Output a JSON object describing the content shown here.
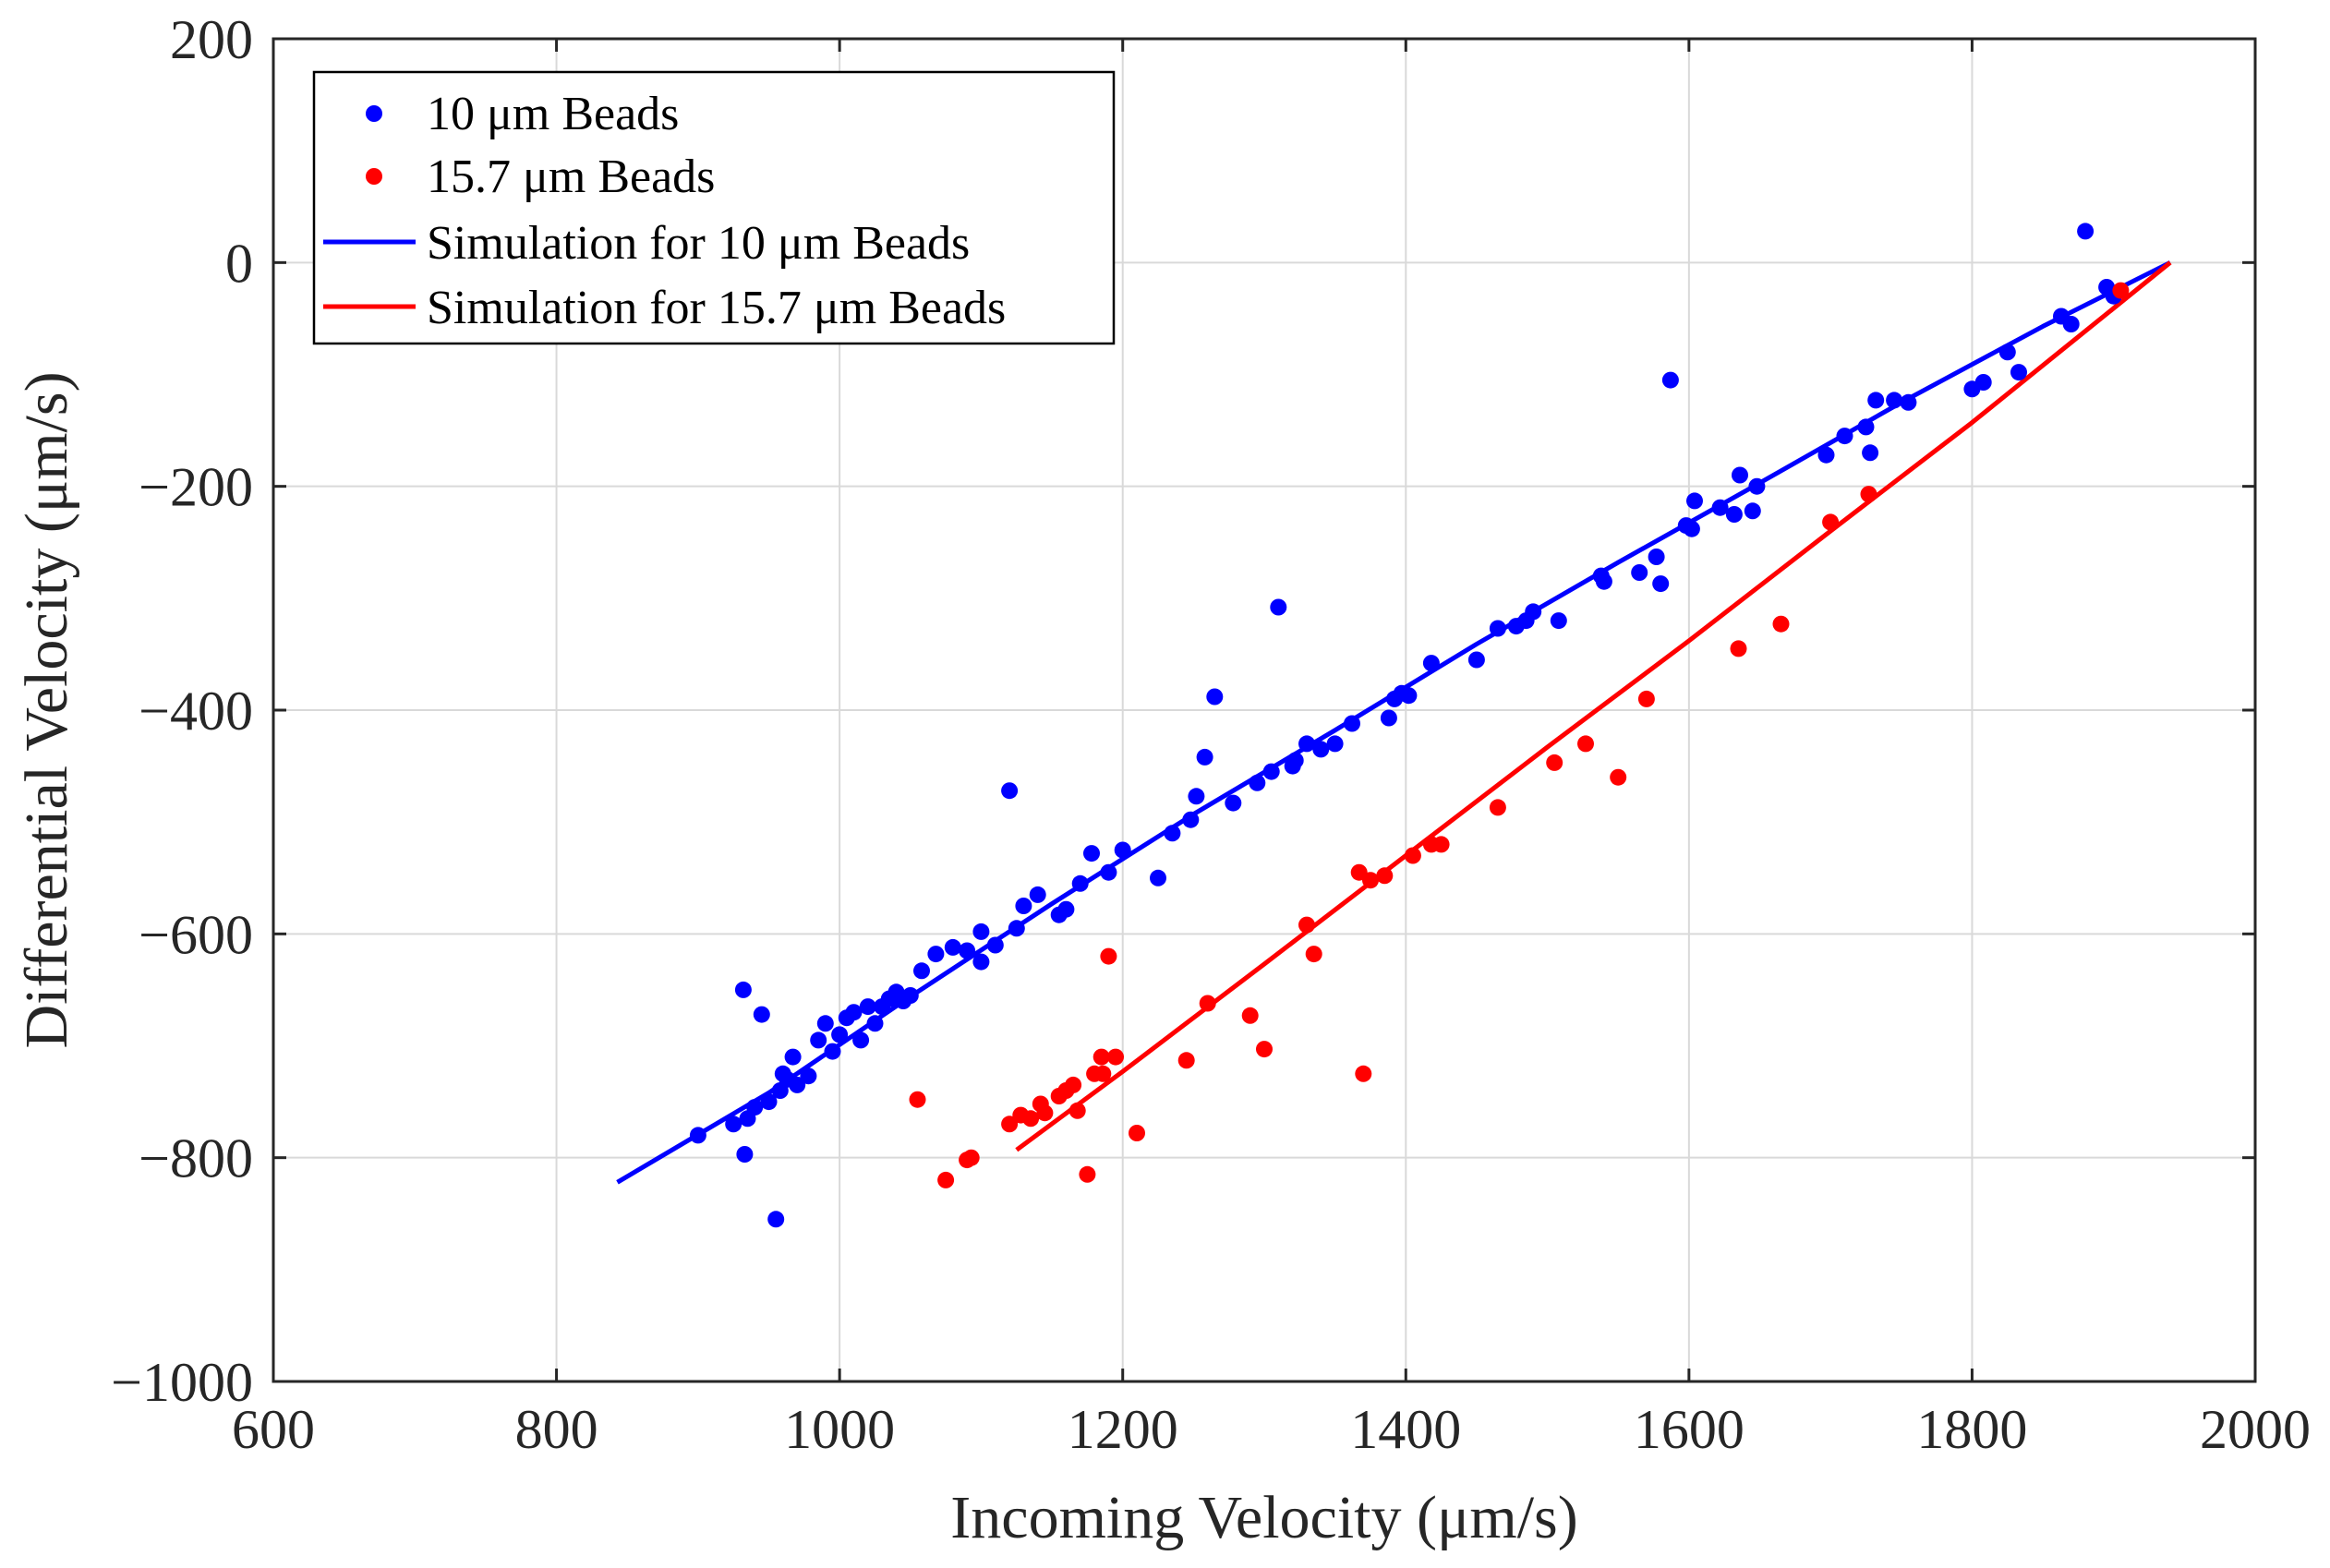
{
  "chart_data": {
    "type": "scatter",
    "title": "",
    "xlabel": "Incoming Velocity (μm/s)",
    "ylabel": "Differential Velocity (μm/s)",
    "xlim": [
      600,
      2000
    ],
    "ylim": [
      -1000,
      200
    ],
    "xticks": [
      600,
      800,
      1000,
      1200,
      1400,
      1600,
      1800,
      2000
    ],
    "yticks": [
      200,
      0,
      -200,
      -400,
      -600,
      -800,
      -1000
    ],
    "xtick_labels": [
      "600",
      "800",
      "1000",
      "1200",
      "1400",
      "1600",
      "1800",
      "2000"
    ],
    "ytick_labels": [
      "200",
      "0",
      "−200",
      "−400",
      "−600",
      "−800",
      "−1000"
    ],
    "grid": true,
    "legend_position": "top-left",
    "series": [
      {
        "name": "10 μm Beads",
        "kind": "scatter",
        "color": "#0000ff",
        "points": [
          [
            900,
            -780
          ],
          [
            925,
            -770
          ],
          [
            932,
            -650
          ],
          [
            933,
            -797
          ],
          [
            935,
            -765
          ],
          [
            940,
            -755
          ],
          [
            945,
            -672
          ],
          [
            950,
            -750
          ],
          [
            955,
            -855
          ],
          [
            958,
            -740
          ],
          [
            960,
            -725
          ],
          [
            963,
            -730
          ],
          [
            967,
            -710
          ],
          [
            970,
            -735
          ],
          [
            978,
            -727
          ],
          [
            985,
            -695
          ],
          [
            990,
            -680
          ],
          [
            995,
            -705
          ],
          [
            1000,
            -690
          ],
          [
            1005,
            -675
          ],
          [
            1010,
            -670
          ],
          [
            1015,
            -695
          ],
          [
            1020,
            -665
          ],
          [
            1025,
            -680
          ],
          [
            1030,
            -665
          ],
          [
            1035,
            -658
          ],
          [
            1040,
            -652
          ],
          [
            1045,
            -660
          ],
          [
            1050,
            -655
          ],
          [
            1058,
            -633
          ],
          [
            1068,
            -618
          ],
          [
            1080,
            -612
          ],
          [
            1090,
            -615
          ],
          [
            1100,
            -598
          ],
          [
            1100,
            -625
          ],
          [
            1110,
            -610
          ],
          [
            1120,
            -472
          ],
          [
            1125,
            -595
          ],
          [
            1130,
            -575
          ],
          [
            1140,
            -565
          ],
          [
            1155,
            -583
          ],
          [
            1160,
            -578
          ],
          [
            1170,
            -555
          ],
          [
            1178,
            -528
          ],
          [
            1190,
            -545
          ],
          [
            1200,
            -525
          ],
          [
            1225,
            -550
          ],
          [
            1235,
            -510
          ],
          [
            1248,
            -498
          ],
          [
            1252,
            -477
          ],
          [
            1258,
            -442
          ],
          [
            1265,
            -388
          ],
          [
            1278,
            -483
          ],
          [
            1295,
            -465
          ],
          [
            1305,
            -455
          ],
          [
            1310,
            -308
          ],
          [
            1320,
            -450
          ],
          [
            1322,
            -445
          ],
          [
            1330,
            -430
          ],
          [
            1340,
            -435
          ],
          [
            1350,
            -430
          ],
          [
            1362,
            -412
          ],
          [
            1388,
            -407
          ],
          [
            1392,
            -390
          ],
          [
            1397,
            -385
          ],
          [
            1402,
            -387
          ],
          [
            1418,
            -358
          ],
          [
            1450,
            -355
          ],
          [
            1465,
            -327
          ],
          [
            1478,
            -325
          ],
          [
            1485,
            -320
          ],
          [
            1490,
            -312
          ],
          [
            1508,
            -320
          ],
          [
            1538,
            -280
          ],
          [
            1540,
            -285
          ],
          [
            1565,
            -277
          ],
          [
            1577,
            -263
          ],
          [
            1580,
            -287
          ],
          [
            1587,
            -105
          ],
          [
            1598,
            -235
          ],
          [
            1602,
            -238
          ],
          [
            1604,
            -213
          ],
          [
            1622,
            -219
          ],
          [
            1632,
            -225
          ],
          [
            1636,
            -190
          ],
          [
            1645,
            -222
          ],
          [
            1648,
            -200
          ],
          [
            1697,
            -172
          ],
          [
            1710,
            -155
          ],
          [
            1725,
            -147
          ],
          [
            1728,
            -170
          ],
          [
            1732,
            -123
          ],
          [
            1745,
            -123
          ],
          [
            1755,
            -125
          ],
          [
            1800,
            -113
          ],
          [
            1808,
            -107
          ],
          [
            1825,
            -80
          ],
          [
            1833,
            -98
          ],
          [
            1863,
            -48
          ],
          [
            1870,
            -55
          ],
          [
            1880,
            28
          ],
          [
            1895,
            -22
          ],
          [
            1900,
            -30
          ]
        ]
      },
      {
        "name": "15.7 μm Beads",
        "kind": "scatter",
        "color": "#ff0000",
        "points": [
          [
            1055,
            -748
          ],
          [
            1075,
            -820
          ],
          [
            1090,
            -802
          ],
          [
            1093,
            -800
          ],
          [
            1120,
            -770
          ],
          [
            1128,
            -762
          ],
          [
            1135,
            -765
          ],
          [
            1142,
            -752
          ],
          [
            1145,
            -760
          ],
          [
            1155,
            -745
          ],
          [
            1160,
            -740
          ],
          [
            1165,
            -735
          ],
          [
            1168,
            -758
          ],
          [
            1175,
            -815
          ],
          [
            1180,
            -725
          ],
          [
            1185,
            -710
          ],
          [
            1186,
            -725
          ],
          [
            1190,
            -620
          ],
          [
            1195,
            -710
          ],
          [
            1210,
            -778
          ],
          [
            1245,
            -713
          ],
          [
            1260,
            -662
          ],
          [
            1290,
            -673
          ],
          [
            1300,
            -703
          ],
          [
            1330,
            -592
          ],
          [
            1335,
            -618
          ],
          [
            1367,
            -545
          ],
          [
            1370,
            -725
          ],
          [
            1375,
            -552
          ],
          [
            1385,
            -548
          ],
          [
            1405,
            -530
          ],
          [
            1418,
            -520
          ],
          [
            1425,
            -520
          ],
          [
            1465,
            -487
          ],
          [
            1505,
            -447
          ],
          [
            1527,
            -430
          ],
          [
            1550,
            -460
          ],
          [
            1570,
            -390
          ],
          [
            1635,
            -345
          ],
          [
            1665,
            -323
          ],
          [
            1700,
            -232
          ],
          [
            1727,
            -207
          ],
          [
            1905,
            -25
          ]
        ]
      },
      {
        "name": "Simulation for 10 μm Beads",
        "kind": "line",
        "color": "#0000ff",
        "points": [
          [
            843,
            -822
          ],
          [
            950,
            -742
          ],
          [
            1050,
            -656
          ],
          [
            1150,
            -573
          ],
          [
            1250,
            -493
          ],
          [
            1350,
            -418
          ],
          [
            1450,
            -341
          ],
          [
            1550,
            -268
          ],
          [
            1650,
            -197
          ],
          [
            1750,
            -125
          ],
          [
            1850,
            -57
          ],
          [
            1940,
            0
          ]
        ]
      },
      {
        "name": "Simulation for 15.7 μm Beads",
        "kind": "line",
        "color": "#ff0000",
        "points": [
          [
            1125,
            -793
          ],
          [
            1200,
            -723
          ],
          [
            1300,
            -627
          ],
          [
            1400,
            -530
          ],
          [
            1500,
            -433
          ],
          [
            1600,
            -338
          ],
          [
            1700,
            -240
          ],
          [
            1800,
            -143
          ],
          [
            1940,
            0
          ]
        ]
      }
    ],
    "legend": [
      {
        "label": "10 μm Beads",
        "marker": "dot",
        "color": "#0000ff"
      },
      {
        "label": "15.7 μm Beads",
        "marker": "dot",
        "color": "#ff0000"
      },
      {
        "label": "Simulation for 10 μm Beads",
        "marker": "line",
        "color": "#0000ff"
      },
      {
        "label": "Simulation for 15.7 μm Beads",
        "marker": "line",
        "color": "#ff0000"
      }
    ]
  }
}
